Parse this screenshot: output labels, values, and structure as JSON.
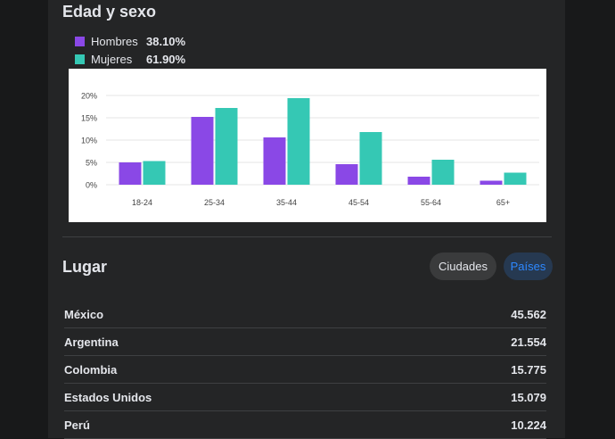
{
  "age_gender": {
    "title": "Edad y sexo",
    "legend": [
      {
        "label": "Hombres",
        "pct": "38.10%",
        "color": "#8a48e6"
      },
      {
        "label": "Mujeres",
        "pct": "61.90%",
        "color": "#35c8b4"
      }
    ]
  },
  "chart_data": {
    "type": "bar",
    "categories": [
      "18-24",
      "25-34",
      "35-44",
      "45-54",
      "55-64",
      "65+"
    ],
    "series": [
      {
        "name": "Hombres",
        "color": "#8a48e6",
        "values": [
          5.0,
          15.2,
          10.6,
          4.6,
          1.8,
          0.9
        ]
      },
      {
        "name": "Mujeres",
        "color": "#35c8b4",
        "values": [
          5.3,
          17.2,
          19.4,
          11.8,
          5.6,
          2.7
        ]
      }
    ],
    "ylim": [
      0,
      20
    ],
    "yticks": [
      "0%",
      "5%",
      "10%",
      "15%",
      "20%"
    ],
    "ytick_values": [
      0,
      5,
      10,
      15,
      20
    ],
    "grid": true
  },
  "location": {
    "title": "Lugar",
    "filters": {
      "cities": "Ciudades",
      "countries": "Países"
    },
    "rows": [
      {
        "country": "México",
        "value": "45.562"
      },
      {
        "country": "Argentina",
        "value": "21.554"
      },
      {
        "country": "Colombia",
        "value": "15.775"
      },
      {
        "country": "Estados Unidos",
        "value": "15.079"
      },
      {
        "country": "Perú",
        "value": "10.224"
      }
    ]
  }
}
